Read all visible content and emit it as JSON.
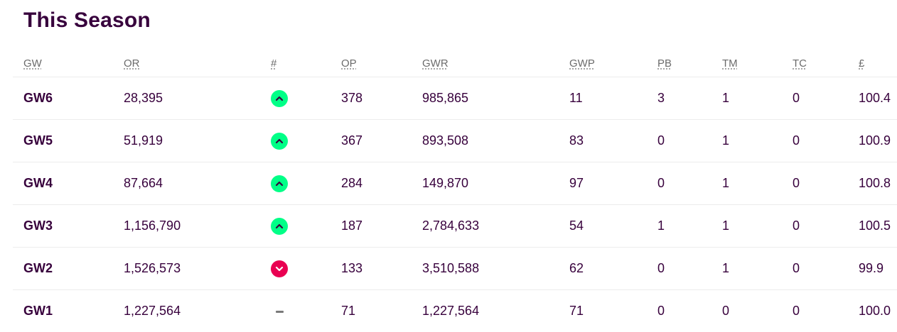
{
  "title": "This Season",
  "columns": [
    {
      "key": "gw",
      "label": "GW"
    },
    {
      "key": "or",
      "label": "OR"
    },
    {
      "key": "move",
      "label": "#"
    },
    {
      "key": "op",
      "label": "OP"
    },
    {
      "key": "gwr",
      "label": "GWR"
    },
    {
      "key": "gwp",
      "label": "GWP"
    },
    {
      "key": "pb",
      "label": "PB"
    },
    {
      "key": "tm",
      "label": "TM"
    },
    {
      "key": "tc",
      "label": "TC"
    },
    {
      "key": "value",
      "label": "£"
    }
  ],
  "rows": [
    {
      "gw": "GW6",
      "or": "28,395",
      "move": "up",
      "op": "378",
      "gwr": "985,865",
      "gwp": "11",
      "pb": "3",
      "tm": "1",
      "tc": "0",
      "value": "100.4"
    },
    {
      "gw": "GW5",
      "or": "51,919",
      "move": "up",
      "op": "367",
      "gwr": "893,508",
      "gwp": "83",
      "pb": "0",
      "tm": "1",
      "tc": "0",
      "value": "100.9"
    },
    {
      "gw": "GW4",
      "or": "87,664",
      "move": "up",
      "op": "284",
      "gwr": "149,870",
      "gwp": "97",
      "pb": "0",
      "tm": "1",
      "tc": "0",
      "value": "100.8"
    },
    {
      "gw": "GW3",
      "or": "1,156,790",
      "move": "up",
      "op": "187",
      "gwr": "2,784,633",
      "gwp": "54",
      "pb": "1",
      "tm": "1",
      "tc": "0",
      "value": "100.5"
    },
    {
      "gw": "GW2",
      "or": "1,526,573",
      "move": "down",
      "op": "133",
      "gwr": "3,510,588",
      "gwp": "62",
      "pb": "0",
      "tm": "1",
      "tc": "0",
      "value": "99.9"
    },
    {
      "gw": "GW1",
      "or": "1,227,564",
      "move": "same",
      "op": "71",
      "gwr": "1,227,564",
      "gwp": "71",
      "pb": "0",
      "tm": "0",
      "tc": "0",
      "value": "100.0"
    }
  ],
  "colors": {
    "text": "#37003c",
    "header": "#6b6b6b",
    "up": "#00ff87",
    "down": "#e90052",
    "same": "#7a7a7a"
  },
  "icons": {
    "up": "chevron-up-icon",
    "down": "chevron-down-icon",
    "same": "dash-icon"
  }
}
